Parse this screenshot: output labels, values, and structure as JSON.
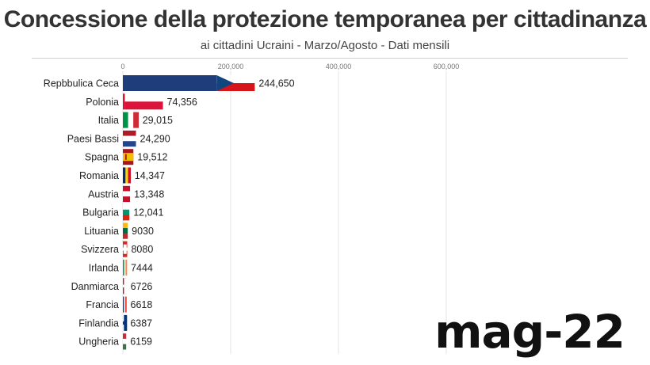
{
  "chart_data": {
    "type": "bar",
    "orientation": "horizontal",
    "title": "Concessione della protezione temporanea per cittadinanza",
    "subtitle": "ai cittadini Ucraini - Marzo/Agosto - Dati mensili",
    "xlim": [
      0,
      600000
    ],
    "xticks": [
      0,
      200000,
      400000,
      600000
    ],
    "xtick_labels": [
      "0",
      "200,000",
      "400,000",
      "600,000"
    ],
    "grid": true,
    "period_label": "mag-22",
    "categories": [
      "Repbbulica Ceca",
      "Polonia",
      "Italia",
      "Paesi Bassi",
      "Spagna",
      "Romania",
      "Austria",
      "Bulgaria",
      "Lituania",
      "Svizzera",
      "Irlanda",
      "Danmiarca",
      "Francia",
      "Finlandia",
      "Ungheria"
    ],
    "values": [
      244650,
      74356,
      29015,
      24290,
      19512,
      14347,
      13348,
      12041,
      9030,
      8080,
      7444,
      6726,
      6618,
      6387,
      6159
    ],
    "value_labels": [
      "244,650",
      "74,356",
      "29,015",
      "24,290",
      "19,512",
      "14,347",
      "13,348",
      "12,041",
      "9030",
      "8080",
      "7444",
      "6726",
      "6618",
      "6387",
      "6159"
    ],
    "bar_colors": [
      "#1f3d7a",
      "#dc143c",
      "#009246",
      "#ae1c28",
      "#f1bf00",
      "#fcd116",
      "#c8102e",
      "#00966e",
      "#006a44",
      "#da291c",
      "#169b62",
      "#c8102e",
      "#0055a4",
      "#ffffff",
      "#cd2a3e"
    ],
    "flag_icons": [
      "flag-czech-republic-icon",
      "flag-poland-icon",
      "flag-italy-icon",
      "flag-netherlands-icon",
      "flag-spain-icon",
      "flag-romania-icon",
      "flag-austria-icon",
      "flag-bulgaria-icon",
      "flag-lithuania-icon",
      "flag-switzerland-icon",
      "flag-ireland-icon",
      "flag-denmark-icon",
      "flag-france-icon",
      "flag-finland-icon",
      "flag-hungary-icon"
    ]
  }
}
